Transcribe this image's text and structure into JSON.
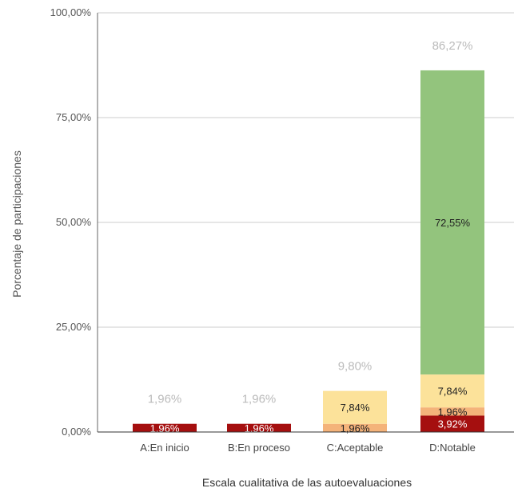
{
  "chart_data": {
    "type": "bar",
    "stacked": true,
    "categories": [
      "A:En inicio",
      "B:En proceso",
      "C:Aceptable",
      "D:Notable"
    ],
    "series": [
      {
        "values": [
          1.96,
          1.96,
          0.0,
          3.92
        ],
        "color": "#a50f0f",
        "labels": [
          "1,96%",
          "1,96%",
          "",
          "3,92%"
        ]
      },
      {
        "values": [
          0.0,
          0.0,
          1.96,
          1.96
        ],
        "color": "#f4b37a",
        "labels": [
          "",
          "",
          "1,96%",
          "1,96%"
        ]
      },
      {
        "values": [
          0.0,
          0.0,
          7.84,
          7.84
        ],
        "color": "#fce29a",
        "labels": [
          "",
          "",
          "7,84%",
          "7,84%"
        ]
      },
      {
        "values": [
          0.0,
          0.0,
          0.0,
          72.55
        ],
        "color": "#93c47d",
        "labels": [
          "",
          "",
          "",
          "72,55%"
        ]
      }
    ],
    "totals": [
      "1,96%",
      "1,96%",
      "9,80%",
      "86,27%"
    ],
    "xlabel": "Escala cualitativa de las autoevaluaciones",
    "ylabel": "Porcentaje de participaciones",
    "yticks": [
      "0,00%",
      "25,00%",
      "50,00%",
      "75,00%",
      "100,00%"
    ],
    "ytick_values": [
      0,
      25,
      50,
      75,
      100
    ],
    "ylim": [
      0,
      100
    ],
    "grid": true,
    "legend": "none"
  }
}
